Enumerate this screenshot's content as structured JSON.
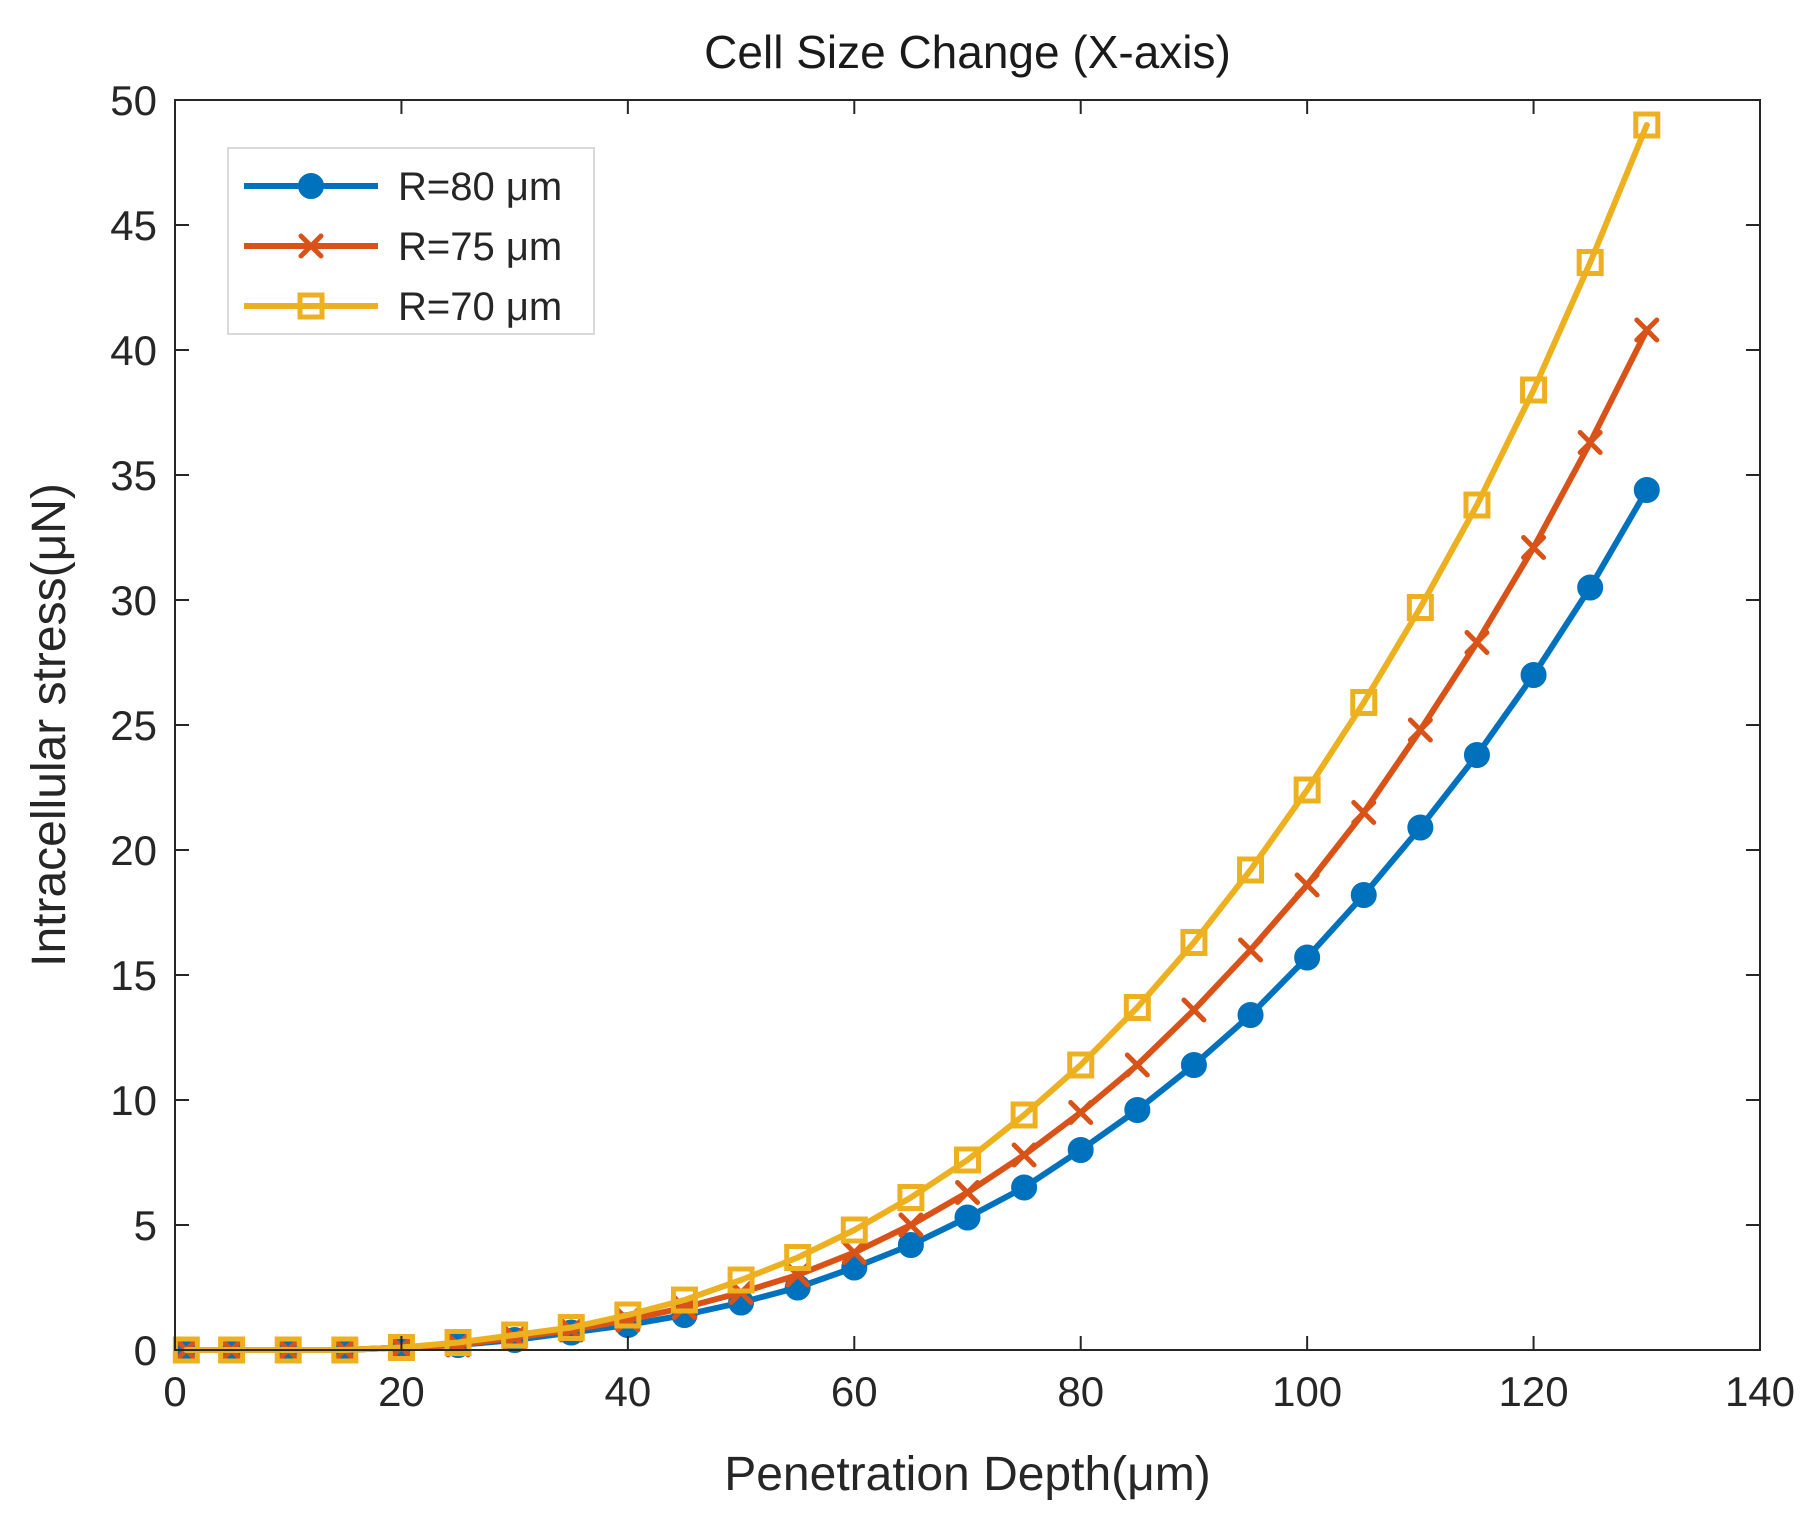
{
  "chart_data": {
    "type": "line",
    "title": "Cell Size Change (X-axis)",
    "xlabel": "Penetration Depth(μm)",
    "ylabel": "Intracellular stress(μN)",
    "xlim": [
      0,
      140
    ],
    "ylim": [
      0,
      50
    ],
    "xticks": [
      "0",
      "20",
      "40",
      "60",
      "80",
      "100",
      "120",
      "140"
    ],
    "yticks": [
      "0",
      "5",
      "10",
      "15",
      "20",
      "25",
      "30",
      "35",
      "40",
      "45",
      "50"
    ],
    "grid": false,
    "legend_position": "top-left",
    "x": [
      1,
      5,
      10,
      15,
      20,
      25,
      30,
      35,
      40,
      45,
      50,
      55,
      60,
      65,
      70,
      75,
      80,
      85,
      90,
      95,
      100,
      105,
      110,
      115,
      120,
      125,
      130
    ],
    "series": [
      {
        "name": "R=80 μm",
        "color": "#0072BD",
        "marker": "circle",
        "values": [
          0.0,
          0.0,
          0.0,
          0.0,
          0.1,
          0.2,
          0.4,
          0.7,
          1.0,
          1.4,
          1.9,
          2.5,
          3.3,
          4.2,
          5.3,
          6.5,
          8.0,
          9.6,
          11.4,
          13.4,
          15.7,
          18.2,
          20.9,
          23.8,
          27.0,
          30.5,
          34.4
        ]
      },
      {
        "name": "R=75 μm",
        "color": "#D95319",
        "marker": "x",
        "values": [
          0.0,
          0.0,
          0.0,
          0.0,
          0.1,
          0.2,
          0.5,
          0.8,
          1.2,
          1.7,
          2.3,
          3.0,
          3.9,
          5.0,
          6.3,
          7.8,
          9.5,
          11.4,
          13.6,
          16.0,
          18.6,
          21.5,
          24.8,
          28.3,
          32.1,
          36.3,
          40.8
        ]
      },
      {
        "name": "R=70 μm",
        "color": "#EDB120",
        "marker": "square",
        "values": [
          0.0,
          0.0,
          0.0,
          0.0,
          0.1,
          0.3,
          0.6,
          0.9,
          1.4,
          2.0,
          2.8,
          3.7,
          4.8,
          6.1,
          7.6,
          9.4,
          11.4,
          13.7,
          16.3,
          19.2,
          22.4,
          25.9,
          29.7,
          33.8,
          38.4,
          43.5,
          49.0
        ]
      }
    ]
  }
}
